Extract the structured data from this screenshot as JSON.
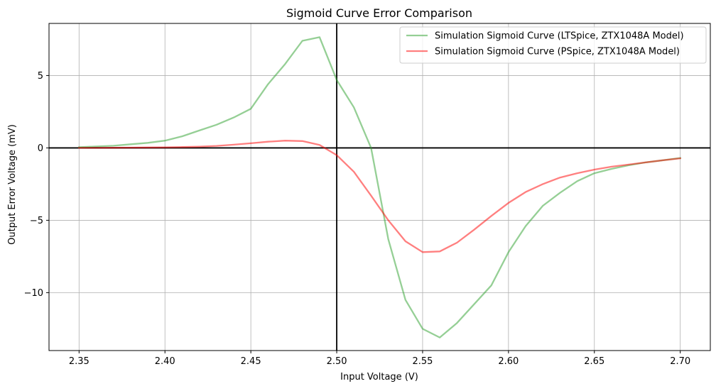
{
  "chart_data": {
    "type": "line",
    "title": "Sigmoid Curve Error Comparison",
    "xlabel": "Input Voltage (V)",
    "ylabel": "Output Error Voltage (mV)",
    "xlim": [
      2.3325,
      2.7175
    ],
    "ylim": [
      -14.0,
      8.6
    ],
    "x_ticks": [
      2.35,
      2.4,
      2.45,
      2.5,
      2.55,
      2.6,
      2.65,
      2.7
    ],
    "x_tick_labels": [
      "2.35",
      "2.40",
      "2.45",
      "2.50",
      "2.55",
      "2.60",
      "2.65",
      "2.70"
    ],
    "y_ticks": [
      -10,
      -5,
      0,
      5
    ],
    "y_tick_labels": [
      "−10",
      "−5",
      "0",
      "5"
    ],
    "grid": true,
    "legend_position": "top-right",
    "reference_lines": {
      "vertical_x": 2.5,
      "horizontal_y": 0
    },
    "series": [
      {
        "name": "Simulation Sigmoid Curve (LTSpice, ZTX1048A Model)",
        "color": "#2ca02c",
        "x": [
          2.35,
          2.36,
          2.37,
          2.38,
          2.39,
          2.4,
          2.41,
          2.42,
          2.43,
          2.44,
          2.45,
          2.46,
          2.47,
          2.48,
          2.49,
          2.5,
          2.51,
          2.52,
          2.53,
          2.54,
          2.55,
          2.56,
          2.57,
          2.58,
          2.59,
          2.6,
          2.61,
          2.62,
          2.63,
          2.64,
          2.65,
          2.66,
          2.67,
          2.68,
          2.69,
          2.7
        ],
        "values": [
          0.05,
          0.1,
          0.15,
          0.25,
          0.35,
          0.5,
          0.8,
          1.2,
          1.6,
          2.1,
          2.7,
          4.4,
          5.8,
          7.4,
          7.65,
          4.7,
          2.8,
          0.0,
          -6.3,
          -10.5,
          -12.5,
          -13.1,
          -12.1,
          -10.8,
          -9.5,
          -7.2,
          -5.4,
          -4.0,
          -3.1,
          -2.3,
          -1.75,
          -1.45,
          -1.2,
          -1.0,
          -0.85,
          -0.7
        ]
      },
      {
        "name": "Simulation Sigmoid Curve (PSpice, ZTX1048A Model)",
        "color": "#ff0000",
        "x": [
          2.35,
          2.36,
          2.37,
          2.38,
          2.39,
          2.4,
          2.41,
          2.42,
          2.43,
          2.44,
          2.45,
          2.46,
          2.47,
          2.48,
          2.49,
          2.5,
          2.51,
          2.52,
          2.53,
          2.54,
          2.55,
          2.56,
          2.57,
          2.58,
          2.59,
          2.6,
          2.61,
          2.62,
          2.63,
          2.64,
          2.65,
          2.66,
          2.67,
          2.68,
          2.69,
          2.7
        ],
        "values": [
          0.0,
          0.0,
          0.01,
          0.02,
          0.03,
          0.04,
          0.06,
          0.09,
          0.14,
          0.22,
          0.32,
          0.43,
          0.5,
          0.47,
          0.2,
          -0.5,
          -1.65,
          -3.3,
          -5.0,
          -6.45,
          -7.2,
          -7.15,
          -6.55,
          -5.65,
          -4.7,
          -3.8,
          -3.05,
          -2.5,
          -2.05,
          -1.75,
          -1.5,
          -1.3,
          -1.15,
          -1.0,
          -0.85,
          -0.72
        ]
      }
    ]
  }
}
